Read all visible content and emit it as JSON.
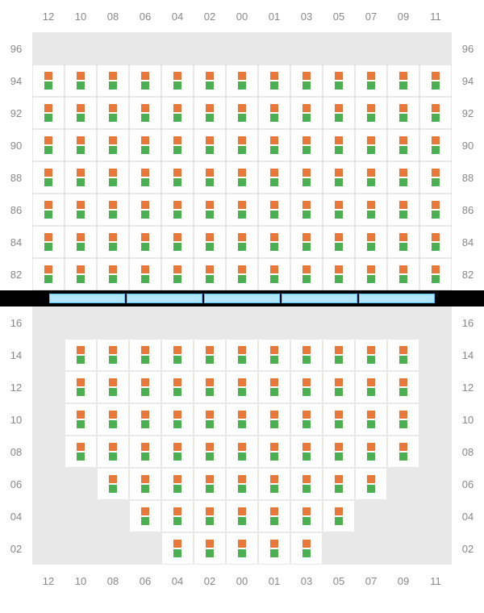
{
  "layout": {
    "cols": 13,
    "cell_size": 40,
    "label_fontsize": 13,
    "label_color": "#888888",
    "grid_border_color": "#e8e8e8",
    "empty_bg": "#e8e8e8",
    "active_bg": "#ffffff",
    "square_size": 10,
    "top_square_color": "#e67838",
    "bottom_square_color": "#4caf50"
  },
  "col_labels": [
    "12",
    "10",
    "08",
    "06",
    "04",
    "02",
    "00",
    "01",
    "03",
    "05",
    "07",
    "09",
    "11"
  ],
  "top_section": {
    "row_labels": [
      "96",
      "94",
      "92",
      "90",
      "88",
      "86",
      "84",
      "82"
    ],
    "active_map": [
      [
        0,
        0,
        0,
        0,
        0,
        0,
        0,
        0,
        0,
        0,
        0,
        0,
        0
      ],
      [
        1,
        1,
        1,
        1,
        1,
        1,
        1,
        1,
        1,
        1,
        1,
        1,
        1
      ],
      [
        1,
        1,
        1,
        1,
        1,
        1,
        1,
        1,
        1,
        1,
        1,
        1,
        1
      ],
      [
        1,
        1,
        1,
        1,
        1,
        1,
        1,
        1,
        1,
        1,
        1,
        1,
        1
      ],
      [
        1,
        1,
        1,
        1,
        1,
        1,
        1,
        1,
        1,
        1,
        1,
        1,
        1
      ],
      [
        1,
        1,
        1,
        1,
        1,
        1,
        1,
        1,
        1,
        1,
        1,
        1,
        1
      ],
      [
        1,
        1,
        1,
        1,
        1,
        1,
        1,
        1,
        1,
        1,
        1,
        1,
        1
      ],
      [
        1,
        1,
        1,
        1,
        1,
        1,
        1,
        1,
        1,
        1,
        1,
        1,
        1
      ]
    ]
  },
  "divider": {
    "bg": "#000000",
    "segment_bg": "#b3e5fc",
    "segment_border": "#4fc3f7",
    "segments": 5
  },
  "bottom_section": {
    "row_labels": [
      "16",
      "14",
      "12",
      "10",
      "08",
      "06",
      "04",
      "02"
    ],
    "active_map": [
      [
        0,
        0,
        0,
        0,
        0,
        0,
        0,
        0,
        0,
        0,
        0,
        0,
        0
      ],
      [
        0,
        1,
        1,
        1,
        1,
        1,
        1,
        1,
        1,
        1,
        1,
        1,
        0
      ],
      [
        0,
        1,
        1,
        1,
        1,
        1,
        1,
        1,
        1,
        1,
        1,
        1,
        0
      ],
      [
        0,
        1,
        1,
        1,
        1,
        1,
        1,
        1,
        1,
        1,
        1,
        1,
        0
      ],
      [
        0,
        1,
        1,
        1,
        1,
        1,
        1,
        1,
        1,
        1,
        1,
        1,
        0
      ],
      [
        0,
        0,
        1,
        1,
        1,
        1,
        1,
        1,
        1,
        1,
        1,
        0,
        0
      ],
      [
        0,
        0,
        0,
        1,
        1,
        1,
        1,
        1,
        1,
        1,
        0,
        0,
        0
      ],
      [
        0,
        0,
        0,
        0,
        1,
        1,
        1,
        1,
        1,
        0,
        0,
        0,
        0
      ]
    ]
  }
}
